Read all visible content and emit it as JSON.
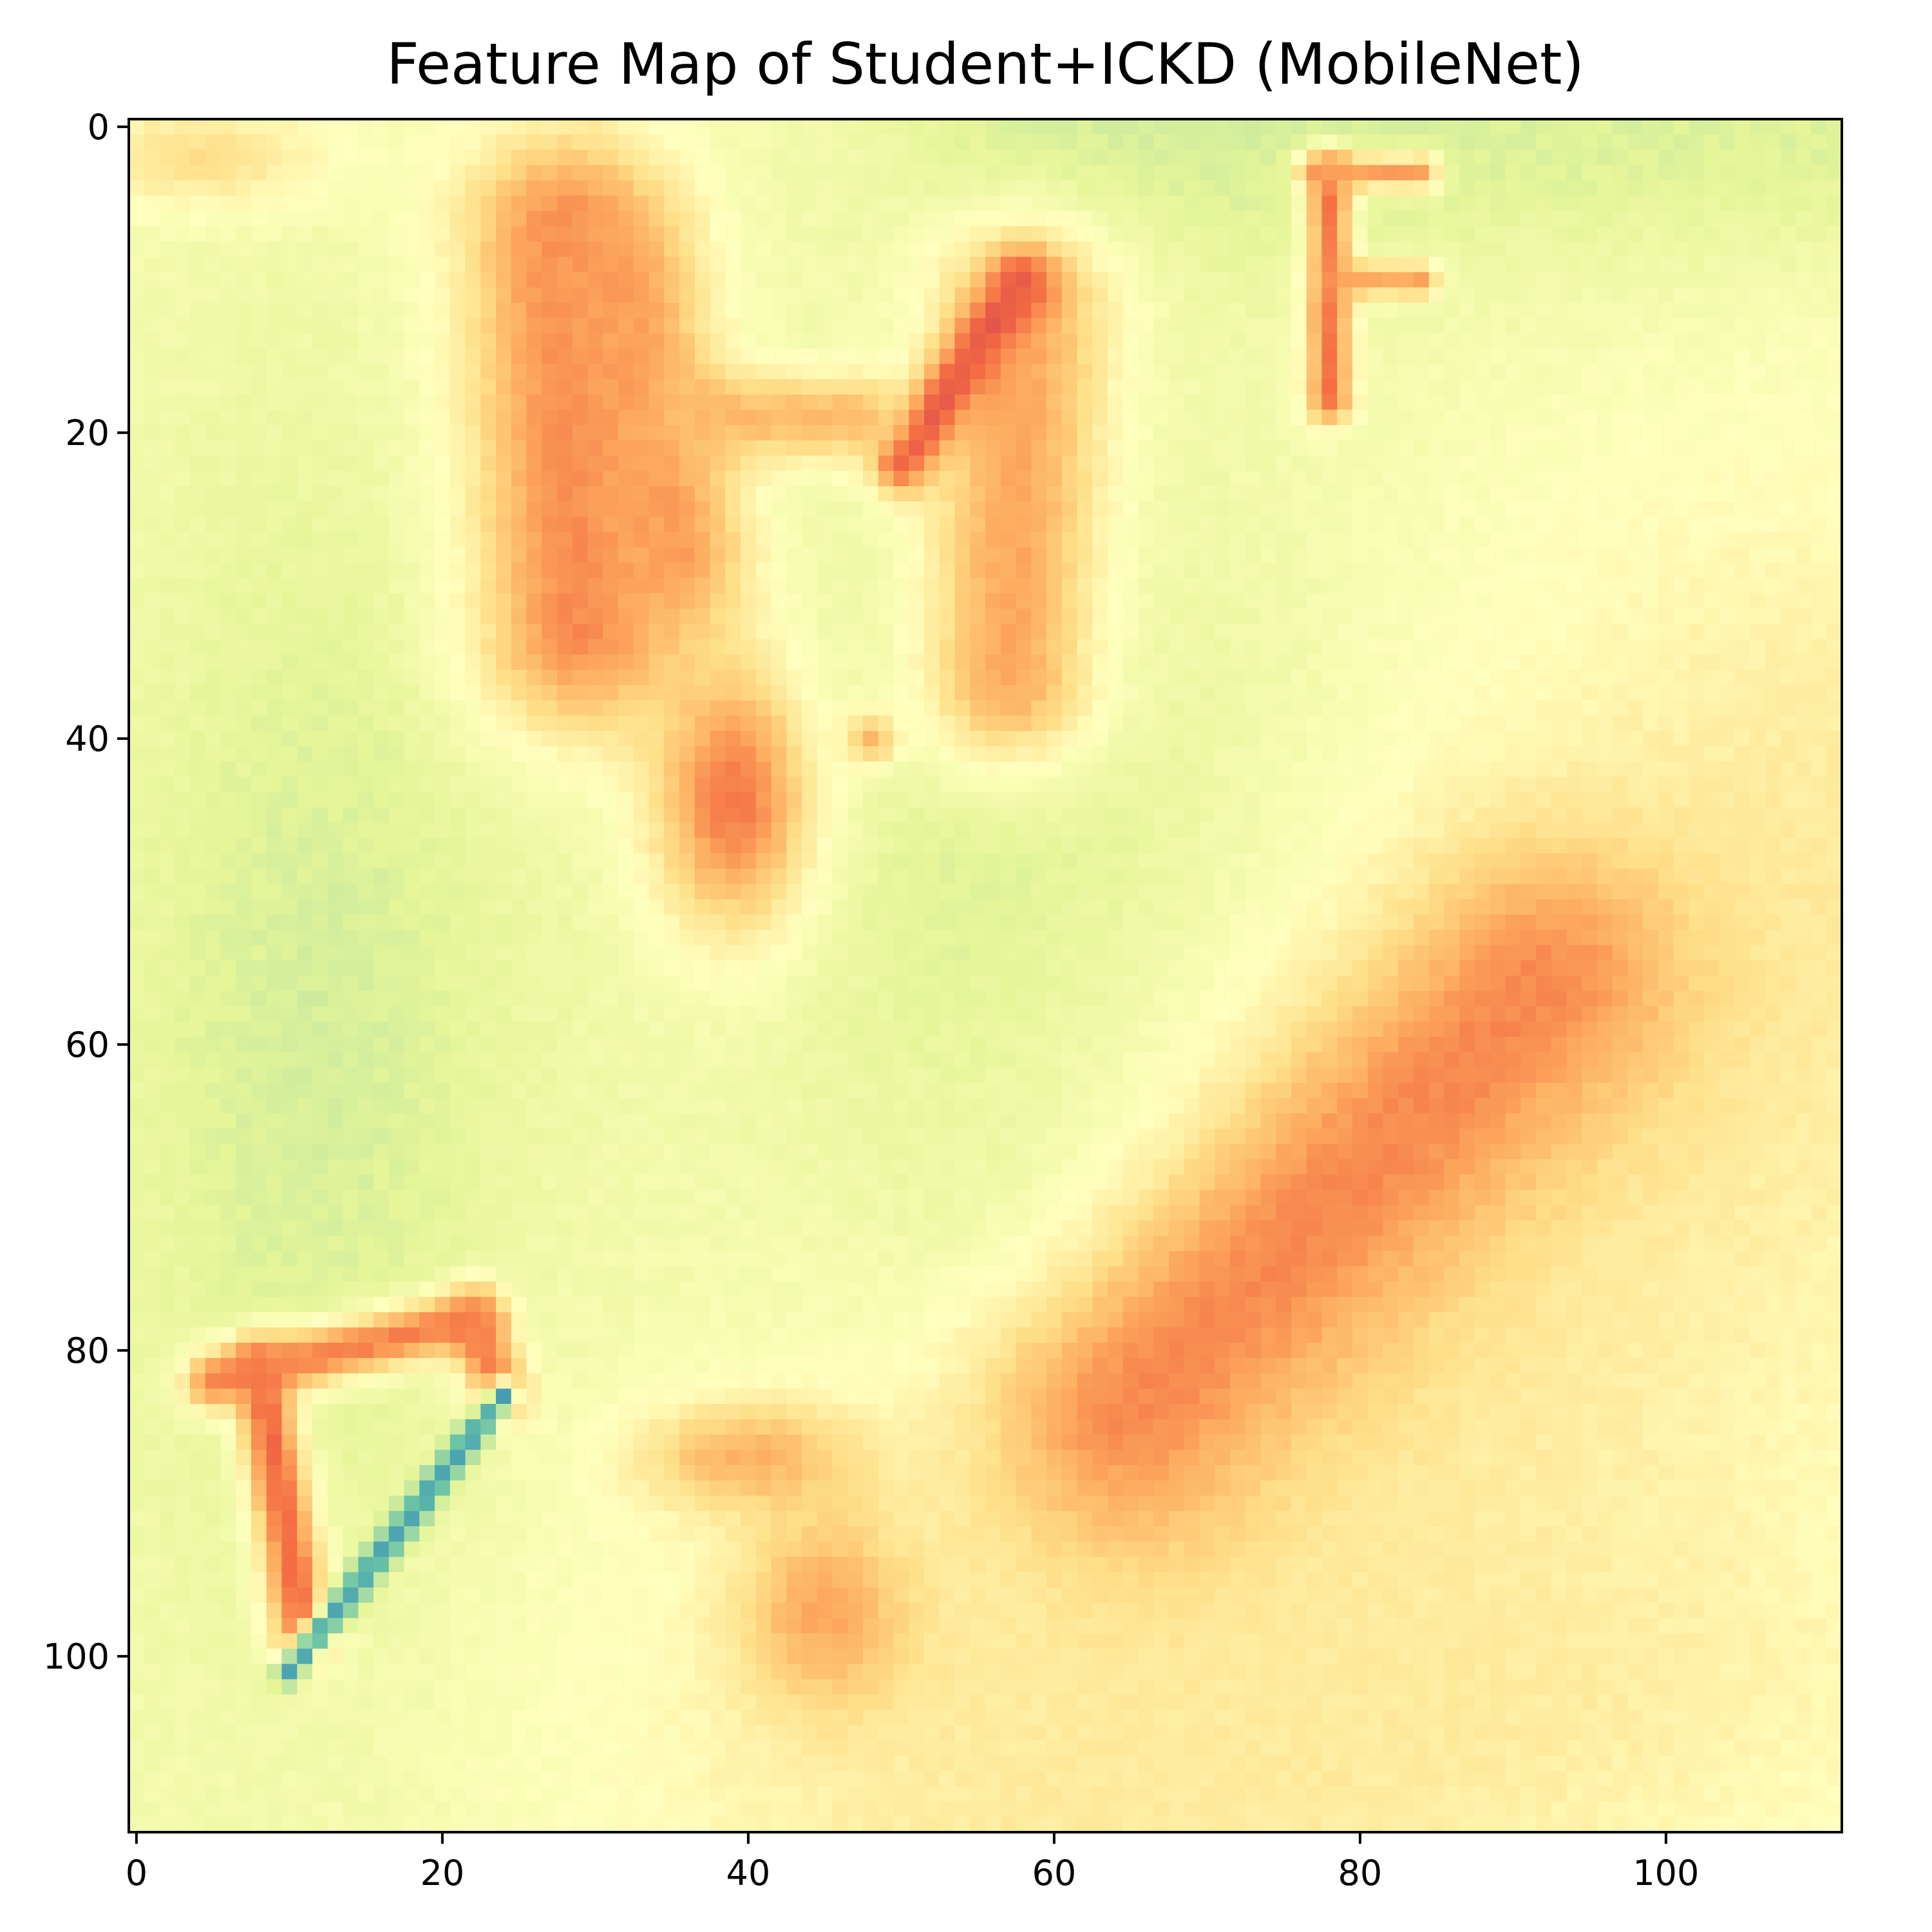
{
  "chart_data": {
    "type": "heatmap",
    "title": "Feature Map of Student+ICKD (MobileNet)",
    "xlabel": "",
    "ylabel": "",
    "xlim": [
      -0.5,
      111.5
    ],
    "ylim": [
      111.5,
      -0.5
    ],
    "grid_size": [
      112,
      112
    ],
    "colormap": "Spectral_r",
    "colormap_stops": [
      "#3288bd",
      "#66c2a5",
      "#abdda4",
      "#e6f598",
      "#ffffbf",
      "#fee08b",
      "#fdae61",
      "#f46d43",
      "#d53e4f"
    ],
    "x_ticks": [
      "0",
      "20",
      "40",
      "60",
      "80",
      "100"
    ],
    "x_tick_values": [
      0,
      20,
      40,
      60,
      80,
      100
    ],
    "y_ticks": [
      "0",
      "20",
      "40",
      "60",
      "80",
      "100"
    ],
    "y_tick_values": [
      0,
      20,
      40,
      60,
      80,
      100
    ],
    "background_level": 0.44,
    "regions": [
      {
        "name": "top-right-fade",
        "shape": "line",
        "points": [
          [
            60,
            0
          ],
          [
            111,
            0
          ]
        ],
        "level": 0.34,
        "width": 10
      },
      {
        "name": "left-band",
        "shape": "ellipse",
        "center": [
          12,
          60
        ],
        "radii": [
          14,
          40
        ],
        "level": 0.34
      },
      {
        "name": "center-band",
        "shape": "ellipse",
        "center": [
          60,
          52
        ],
        "radii": [
          22,
          30
        ],
        "level": 0.33
      },
      {
        "name": "center-lower-band",
        "shape": "ellipse",
        "center": [
          62,
          72
        ],
        "radii": [
          12,
          10
        ],
        "level": 0.3
      },
      {
        "name": "right-diagonal-warm",
        "shape": "line",
        "points": [
          [
            62,
            110
          ],
          [
            111,
            48
          ]
        ],
        "level": 0.58,
        "width": 30
      },
      {
        "name": "bottom-warm",
        "shape": "ellipse",
        "center": [
          80,
          102
        ],
        "radii": [
          40,
          14
        ],
        "level": 0.58
      },
      {
        "name": "top-left-warm",
        "shape": "ellipse",
        "center": [
          4,
          2
        ],
        "radii": [
          10,
          4
        ],
        "level": 0.62
      },
      {
        "name": "left-ear",
        "shape": "line",
        "points": [
          [
            28,
            7
          ],
          [
            29,
            33
          ]
        ],
        "level": 0.82,
        "width": 7
      },
      {
        "name": "left-ear-inner",
        "shape": "line",
        "points": [
          [
            31,
            10
          ],
          [
            35,
            28
          ]
        ],
        "level": 0.78,
        "width": 5
      },
      {
        "name": "right-ear",
        "shape": "line",
        "points": [
          [
            58,
            12
          ],
          [
            57,
            36
          ]
        ],
        "level": 0.76,
        "width": 6
      },
      {
        "name": "right-ear-edge",
        "shape": "line",
        "points": [
          [
            58,
            10
          ],
          [
            50,
            22
          ]
        ],
        "level": 0.92,
        "width": 2
      },
      {
        "name": "brow",
        "shape": "line",
        "points": [
          [
            36,
            19
          ],
          [
            47,
            19
          ]
        ],
        "level": 0.72,
        "width": 3
      },
      {
        "name": "nose-blob",
        "shape": "ellipse",
        "center": [
          39,
          44
        ],
        "radii": [
          6,
          10
        ],
        "level": 0.85
      },
      {
        "name": "eye-dot",
        "shape": "ellipse",
        "center": [
          48,
          40
        ],
        "radii": [
          2,
          2
        ],
        "level": 0.72
      },
      {
        "name": "right-wing",
        "shape": "line",
        "points": [
          [
            65,
            84
          ],
          [
            92,
            56
          ]
        ],
        "level": 0.82,
        "width": 9
      },
      {
        "name": "bottom-blob-a",
        "shape": "ellipse",
        "center": [
          40,
          87
        ],
        "radii": [
          8,
          4
        ],
        "level": 0.74
      },
      {
        "name": "bottom-blob-b",
        "shape": "ellipse",
        "center": [
          45,
          97
        ],
        "radii": [
          6,
          7
        ],
        "level": 0.76
      },
      {
        "name": "letter-d-stem",
        "shape": "line",
        "points": [
          [
            8,
            81
          ],
          [
            11,
            99
          ]
        ],
        "level": 0.88,
        "width": 2
      },
      {
        "name": "letter-d-top",
        "shape": "line",
        "points": [
          [
            5,
            82
          ],
          [
            22,
            78
          ]
        ],
        "level": 0.84,
        "width": 2
      },
      {
        "name": "letter-d-arc",
        "shape": "line",
        "points": [
          [
            22,
            78
          ],
          [
            24,
            83
          ]
        ],
        "level": 0.84,
        "width": 2
      },
      {
        "name": "letter-d-diagonal",
        "shape": "line",
        "points": [
          [
            24,
            83
          ],
          [
            10,
            101
          ]
        ],
        "level": 0.06,
        "width": 1
      },
      {
        "name": "letter-f-stem",
        "shape": "line",
        "points": [
          [
            78,
            3
          ],
          [
            78,
            18
          ]
        ],
        "level": 0.86,
        "width": 1.5
      },
      {
        "name": "letter-f-top",
        "shape": "line",
        "points": [
          [
            77,
            3
          ],
          [
            84,
            3
          ]
        ],
        "level": 0.78,
        "width": 1.2
      },
      {
        "name": "letter-f-mid",
        "shape": "line",
        "points": [
          [
            79,
            10
          ],
          [
            84,
            10
          ]
        ],
        "level": 0.76,
        "width": 1.2
      }
    ]
  }
}
